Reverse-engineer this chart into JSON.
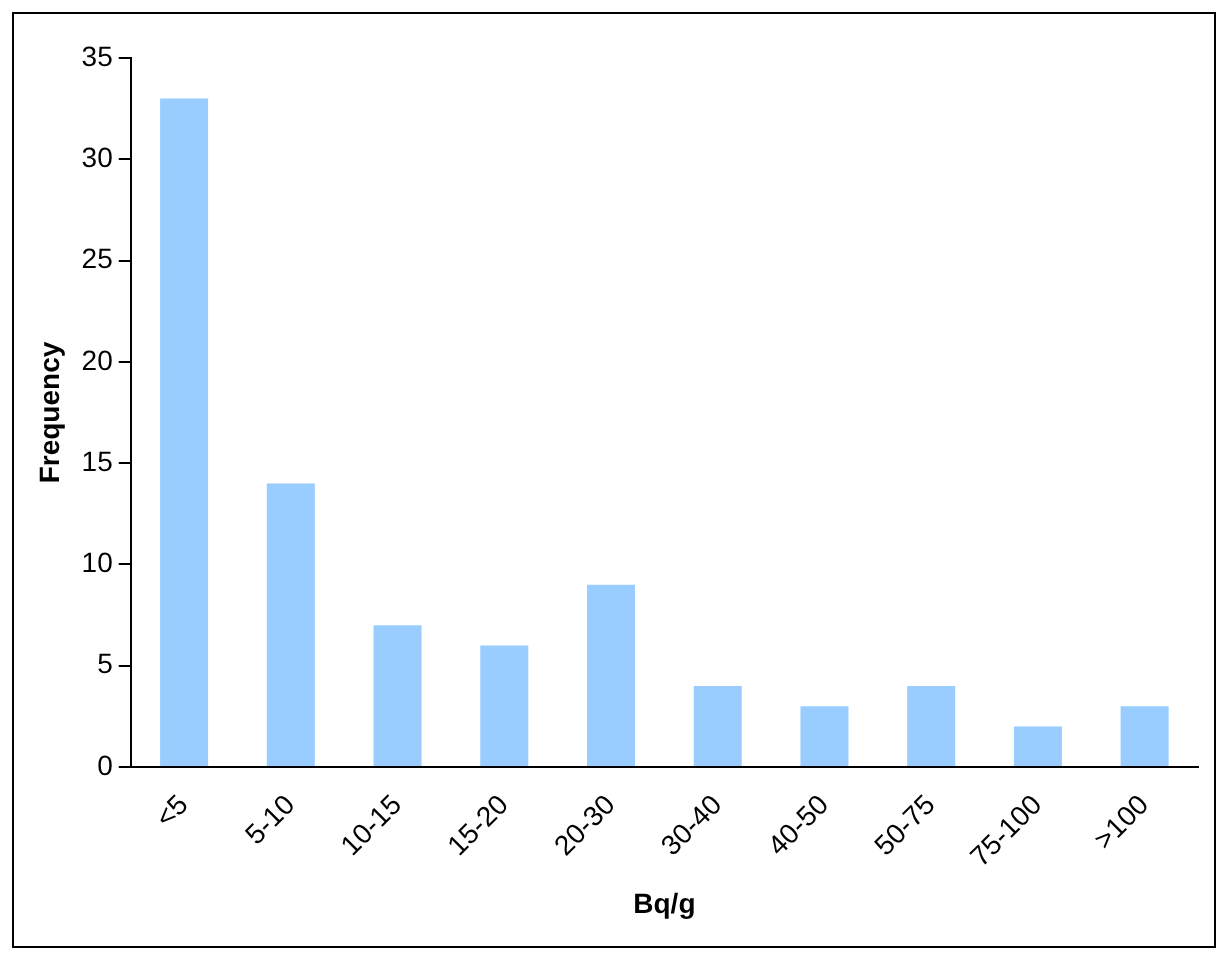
{
  "chart_data": {
    "type": "bar",
    "xlabel": "Bq/g",
    "ylabel": "Frequency",
    "categories": [
      "<5",
      "5-10",
      "10-15",
      "15-20",
      "20-30",
      "30-40",
      "40-50",
      "50-75",
      "75-100",
      ">100"
    ],
    "values": [
      33,
      14,
      7,
      6,
      9,
      4,
      3,
      4,
      2,
      3
    ],
    "color": "#99ccff",
    "ylim": [
      0,
      35
    ],
    "yticks": [
      0,
      5,
      10,
      15,
      20,
      25,
      30,
      35
    ],
    "grid": false,
    "legend": false
  }
}
